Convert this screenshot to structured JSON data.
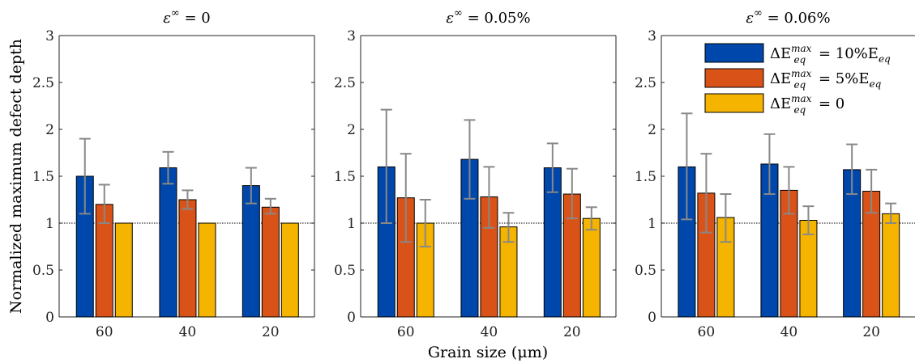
{
  "chart_data": {
    "type": "bar",
    "ylabel": "Normalized maximum defect depth",
    "xlabel": "Grain size (μm)",
    "ylim": [
      0,
      3
    ],
    "yticks": [
      "0",
      "0.5",
      "1",
      "1.5",
      "2",
      "2.5",
      "3"
    ],
    "reference_line": 1,
    "categories": [
      "60",
      "40",
      "20"
    ],
    "legend": {
      "placement": "top-right of third panel",
      "entries": [
        {
          "base": "ΔE",
          "sup": "max",
          "sub": "eq",
          "rhs": " = 10%E",
          "rhs_sub": "eq"
        },
        {
          "base": "ΔE",
          "sup": "max",
          "sub": "eq",
          "rhs": " = 5%E",
          "rhs_sub": "eq"
        },
        {
          "base": "ΔE",
          "sup": "max",
          "sub": "eq",
          "rhs": " = 0",
          "rhs_sub": ""
        }
      ]
    },
    "colors": [
      "#0047AB",
      "#D95319",
      "#F5B400"
    ],
    "panels": [
      {
        "title_sym": "ε",
        "title_sup": "∞",
        "title_rhs": " = 0",
        "series": [
          {
            "values": [
              1.5,
              1.59,
              1.4
            ],
            "err_low": [
              1.1,
              1.42,
              1.21
            ],
            "err_high": [
              1.9,
              1.76,
              1.59
            ]
          },
          {
            "values": [
              1.2,
              1.25,
              1.17
            ],
            "err_low": [
              1.0,
              1.15,
              1.1
            ],
            "err_high": [
              1.41,
              1.35,
              1.26
            ]
          },
          {
            "values": [
              1.0,
              1.0,
              1.0
            ],
            "err_low": [
              null,
              null,
              null
            ],
            "err_high": [
              null,
              null,
              null
            ]
          }
        ]
      },
      {
        "title_sym": "ε",
        "title_sup": "∞",
        "title_rhs": " = 0.05%",
        "series": [
          {
            "values": [
              1.6,
              1.68,
              1.59
            ],
            "err_low": [
              1.0,
              1.26,
              1.33
            ],
            "err_high": [
              2.21,
              2.1,
              1.85
            ]
          },
          {
            "values": [
              1.27,
              1.28,
              1.31
            ],
            "err_low": [
              0.8,
              0.95,
              1.05
            ],
            "err_high": [
              1.74,
              1.6,
              1.58
            ]
          },
          {
            "values": [
              1.0,
              0.96,
              1.05
            ],
            "err_low": [
              0.75,
              0.8,
              0.93
            ],
            "err_high": [
              1.25,
              1.11,
              1.17
            ]
          }
        ]
      },
      {
        "title_sym": "ε",
        "title_sup": "∞",
        "title_rhs": " = 0.06%",
        "series": [
          {
            "values": [
              1.6,
              1.63,
              1.57
            ],
            "err_low": [
              1.04,
              1.31,
              1.31
            ],
            "err_high": [
              2.17,
              1.95,
              1.84
            ]
          },
          {
            "values": [
              1.32,
              1.35,
              1.34
            ],
            "err_low": [
              0.9,
              1.1,
              1.11
            ],
            "err_high": [
              1.74,
              1.6,
              1.57
            ]
          },
          {
            "values": [
              1.06,
              1.03,
              1.1
            ],
            "err_low": [
              0.8,
              0.88,
              1.0
            ],
            "err_high": [
              1.31,
              1.18,
              1.21
            ]
          }
        ]
      }
    ]
  }
}
